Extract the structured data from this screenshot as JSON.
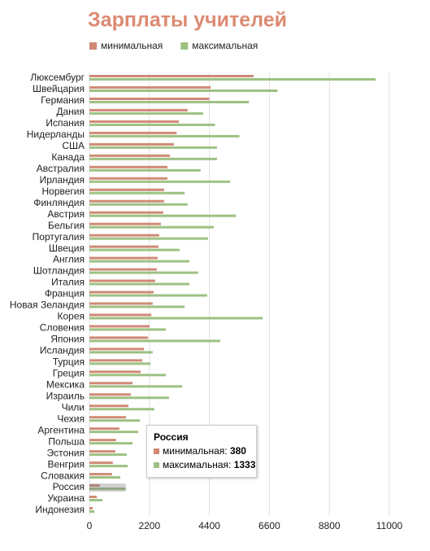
{
  "chart_data": {
    "type": "hbar",
    "title": "Зарплаты учителей",
    "categories": [
      "Люксембург",
      "Швейцария",
      "Германия",
      "Дания",
      "Испания",
      "Нидерланды",
      "США",
      "Канада",
      "Австралия",
      "Ирландия",
      "Норвегия",
      "Финляндия",
      "Австрия",
      "Бельгия",
      "Португалия",
      "Швеция",
      "Англия",
      "Шотландия",
      "Италия",
      "Франция",
      "Новая Зеландия",
      "Корея",
      "Словения",
      "Япония",
      "Исландия",
      "Турция",
      "Греция",
      "Мексика",
      "Израиль",
      "Чили",
      "Чехия",
      "Аргентина",
      "Польша",
      "Эстония",
      "Венгрия",
      "Словакия",
      "Россия",
      "Украина",
      "Индонезия"
    ],
    "series": [
      {
        "name": "минимальная",
        "color": "#d08a76",
        "values": [
          6020,
          4450,
          4400,
          3600,
          3280,
          3200,
          3100,
          2950,
          2860,
          2860,
          2740,
          2740,
          2710,
          2620,
          2560,
          2530,
          2500,
          2470,
          2410,
          2350,
          2320,
          2270,
          2210,
          2150,
          2000,
          1940,
          1880,
          1580,
          1520,
          1430,
          1340,
          1100,
          980,
          950,
          860,
          830,
          380,
          270,
          120
        ]
      },
      {
        "name": "максимальная",
        "color": "#9dc183",
        "values": [
          10500,
          6900,
          5850,
          4170,
          4600,
          5500,
          4680,
          4680,
          4080,
          5160,
          3490,
          3600,
          5370,
          4560,
          4350,
          3310,
          3670,
          3990,
          3670,
          4320,
          3490,
          6350,
          2800,
          4800,
          2320,
          2240,
          2800,
          3400,
          2920,
          2380,
          1850,
          1790,
          1580,
          1370,
          1400,
          1130,
          1333,
          480,
          180
        ]
      }
    ],
    "xlim": [
      0,
      11000
    ],
    "xticks": [
      0,
      2200,
      4400,
      6600,
      8800,
      11000
    ],
    "grid": true,
    "tooltip_index": 36
  }
}
